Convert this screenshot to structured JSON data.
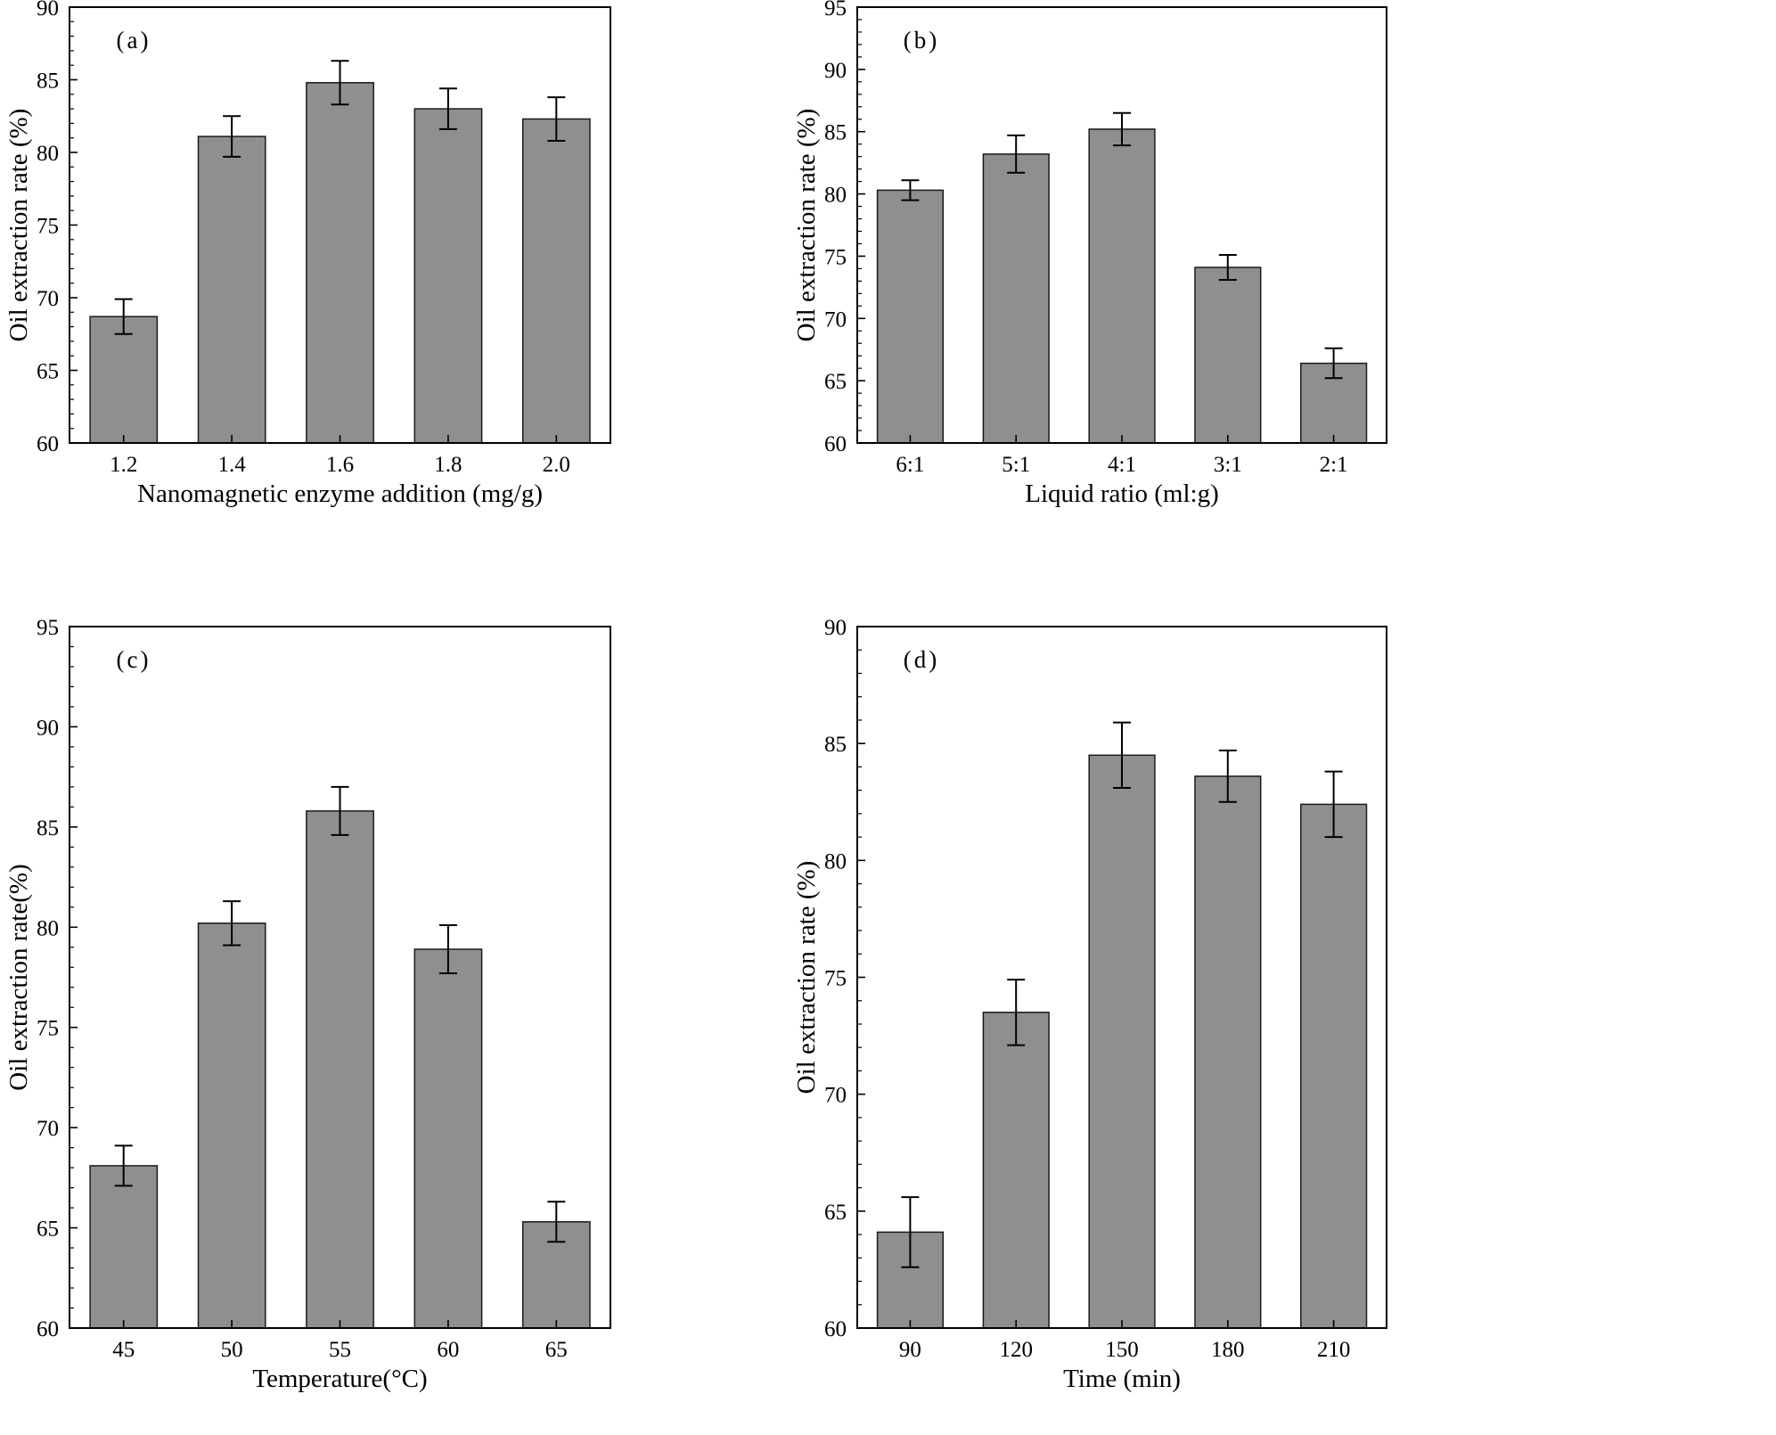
{
  "figure": {
    "background": "#ffffff",
    "bar_fill": "#8f8f8f",
    "bar_edge": "#1a1a1a",
    "axis_color": "#000000"
  },
  "chart_data": [
    {
      "panel": "a",
      "type": "bar",
      "label": "(a)",
      "categories": [
        "1.2",
        "1.4",
        "1.6",
        "1.8",
        "2.0"
      ],
      "values": [
        68.7,
        81.1,
        84.8,
        83.0,
        82.3
      ],
      "errors": [
        1.2,
        1.4,
        1.5,
        1.4,
        1.5
      ],
      "xlabel": "Nanomagnetic enzyme addition (mg/g)",
      "ylabel": "Oil extraction rate (%)",
      "ylim": [
        60,
        90
      ],
      "ytick_step": 5,
      "yminor_step": 1,
      "legend": "none",
      "grid": "off"
    },
    {
      "panel": "b",
      "type": "bar",
      "label": "(b)",
      "categories": [
        "6:1",
        "5:1",
        "4:1",
        "3:1",
        "2:1"
      ],
      "values": [
        80.3,
        83.2,
        85.2,
        74.1,
        66.4
      ],
      "errors": [
        0.8,
        1.5,
        1.3,
        1.0,
        1.2
      ],
      "xlabel": "Liquid ratio (ml:g)",
      "ylabel": "Oil extraction rate (%)",
      "ylim": [
        60,
        95
      ],
      "ytick_step": 5,
      "yminor_step": 1,
      "legend": "none",
      "grid": "off"
    },
    {
      "panel": "c",
      "type": "bar",
      "label": "(c)",
      "categories": [
        "45",
        "50",
        "55",
        "60",
        "65"
      ],
      "values": [
        68.1,
        80.2,
        85.8,
        78.9,
        65.3
      ],
      "errors": [
        1.0,
        1.1,
        1.2,
        1.2,
        1.0
      ],
      "xlabel": "Temperature(°C)",
      "ylabel": "Oil extraction rate(%)",
      "ylim": [
        60,
        95
      ],
      "ytick_step": 5,
      "yminor_step": 1,
      "legend": "none",
      "grid": "off"
    },
    {
      "panel": "d",
      "type": "bar",
      "label": "(d)",
      "categories": [
        "90",
        "120",
        "150",
        "180",
        "210"
      ],
      "values": [
        64.1,
        73.5,
        84.5,
        83.6,
        82.4
      ],
      "errors": [
        1.5,
        1.4,
        1.4,
        1.1,
        1.4
      ],
      "xlabel": "Time (min)",
      "ylabel": "Oil extraction rate (%)",
      "ylim": [
        60,
        90
      ],
      "ytick_step": 5,
      "yminor_step": 1,
      "legend": "none",
      "grid": "off"
    }
  ]
}
